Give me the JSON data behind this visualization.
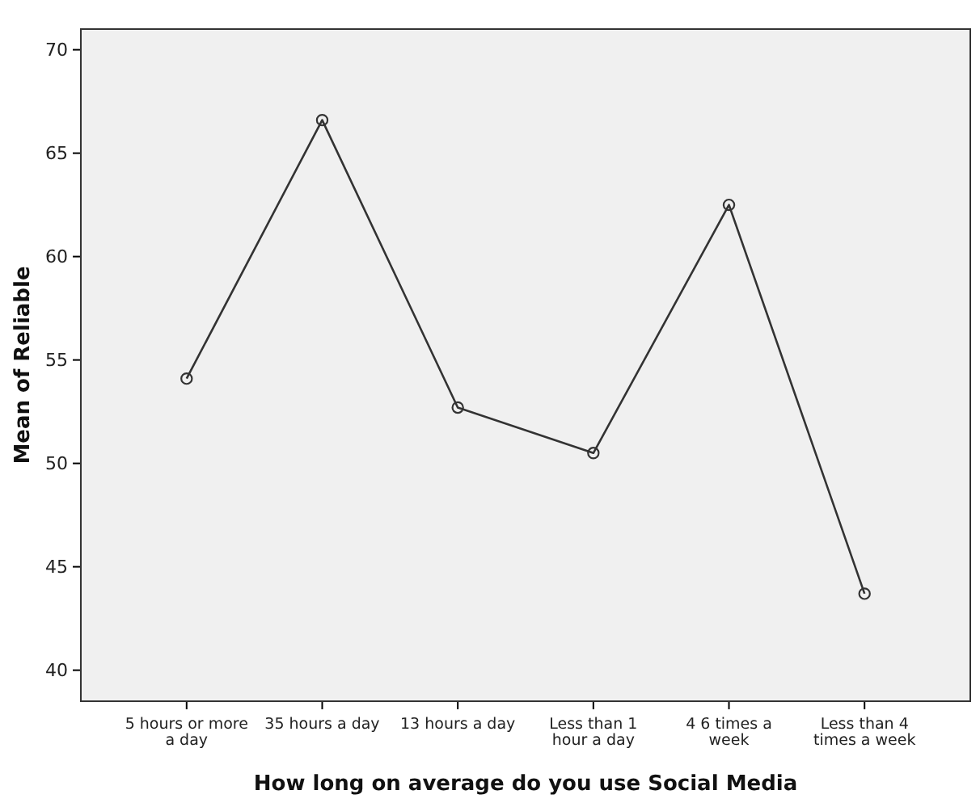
{
  "chart_data": {
    "type": "line",
    "xlabel": "How long on average do you use Social Media",
    "ylabel": "Mean of Reliable",
    "categories": [
      "5 hours or more a day",
      "35 hours a day",
      "13 hours a day",
      "Less than 1 hour a day",
      "4  6 times a week",
      "Less than 4 times a week"
    ],
    "series": [
      {
        "color": "#333333",
        "values": [
          54.1,
          66.6,
          52.7,
          50.5,
          62.5,
          43.7
        ]
      }
    ],
    "ylim": [
      38.5,
      71
    ],
    "yticks": [
      40,
      45,
      50,
      55,
      60,
      65,
      70
    ],
    "marker": "circle",
    "line_style": "solid",
    "grid": false
  }
}
